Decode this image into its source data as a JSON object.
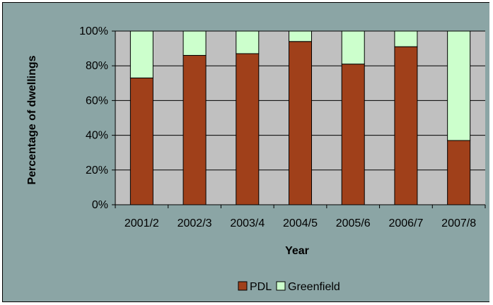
{
  "chart_data": {
    "type": "bar",
    "stacked": true,
    "normalized_percent": true,
    "title": "",
    "xlabel": "Year",
    "ylabel": "Percentage of dwellings",
    "categories": [
      "2001/2",
      "2002/3",
      "2003/4",
      "2004/5",
      "2005/6",
      "2006/7",
      "2007/8"
    ],
    "series": [
      {
        "name": "PDL",
        "color": "#A0401A",
        "values": [
          73,
          86,
          87,
          94,
          81,
          91,
          37
        ]
      },
      {
        "name": "Greenfield",
        "color": "#CCFFCC",
        "values": [
          27,
          14,
          13,
          6,
          19,
          9,
          63
        ]
      }
    ],
    "ylim": [
      0,
      100
    ],
    "yticks": [
      "0%",
      "20%",
      "40%",
      "60%",
      "80%",
      "100%"
    ],
    "grid": true,
    "legend_position": "bottom",
    "colors": {
      "background": "#8BA5A5",
      "plot_area": "#C0C0C0",
      "gridline": "#000000"
    }
  }
}
